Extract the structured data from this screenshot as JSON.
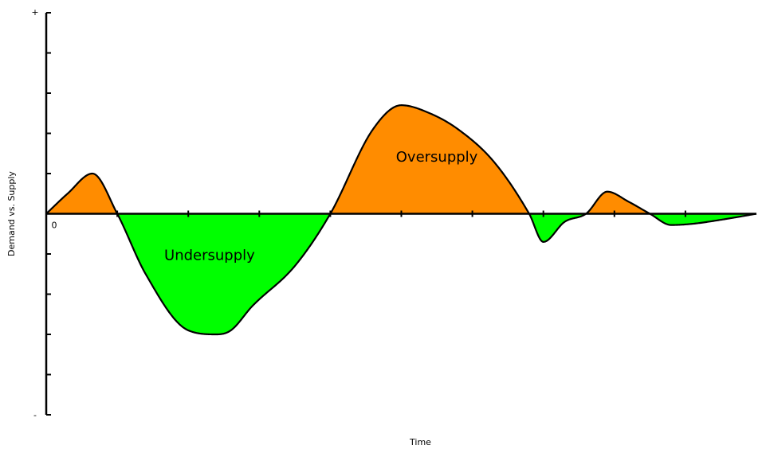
{
  "chart_data": {
    "type": "area",
    "xlabel": "Time",
    "ylabel": "Demand vs. Supply",
    "y_top_label": "+",
    "y_bottom_label": "-",
    "origin_label": "0",
    "xlim": [
      0,
      10
    ],
    "ylim": [
      -5,
      5
    ],
    "x": [
      0,
      0.3,
      0.65,
      1.0,
      1.4,
      2.0,
      2.4,
      2.6,
      2.9,
      3.5,
      4.0,
      4.6,
      5.0,
      5.4,
      5.8,
      6.3,
      6.8,
      7.0,
      7.3,
      7.6,
      7.9,
      8.2,
      8.5,
      8.8,
      9.1,
      9.5,
      10.0
    ],
    "y": [
      0,
      0.5,
      1.0,
      0,
      -1.5,
      -2.9,
      -3.0,
      -2.9,
      -2.3,
      -1.3,
      0,
      2.1,
      2.7,
      2.5,
      2.1,
      1.3,
      0,
      -0.7,
      -0.2,
      0,
      0.55,
      0.3,
      0,
      -0.28,
      -0.25,
      -0.15,
      0
    ],
    "colors": {
      "positive": "#ff8c00",
      "negative": "#00ff00",
      "line": "#000000"
    },
    "annotations": [
      {
        "text": "Oversupply",
        "x": 5.5,
        "y": 1.3
      },
      {
        "text": "Undersupply",
        "x": 2.3,
        "y": -1.15
      }
    ]
  }
}
